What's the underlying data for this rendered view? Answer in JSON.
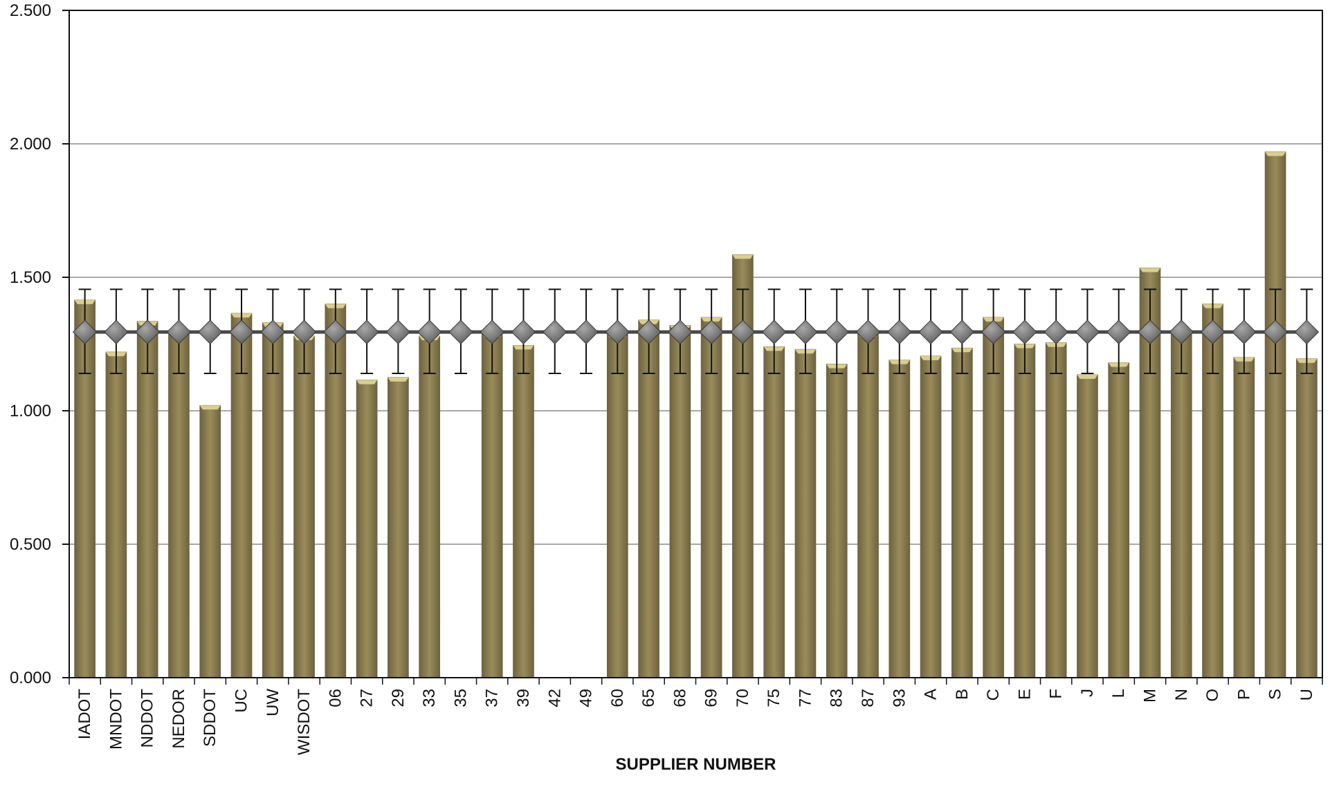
{
  "chart_data": {
    "type": "bar",
    "xlabel": "SUPPLIER NUMBER",
    "ylabel": "",
    "ylim": [
      0,
      2.5
    ],
    "yticks": [
      "0.000",
      "0.500",
      "1.000",
      "1.500",
      "2.000",
      "2.500"
    ],
    "grid": true,
    "legend": "none",
    "categories": [
      "IADOT",
      "MNDOT",
      "NDDOT",
      "NEDOR",
      "SDDOT",
      "UC",
      "UW",
      "WISDOT",
      "06",
      "27",
      "29",
      "33",
      "35",
      "37",
      "39",
      "42",
      "49",
      "60",
      "65",
      "68",
      "69",
      "70",
      "75",
      "77",
      "83",
      "87",
      "93",
      "A",
      "B",
      "C",
      "E",
      "F",
      "J",
      "L",
      "M",
      "N",
      "O",
      "P",
      "S",
      "U"
    ],
    "series": [
      {
        "type": "bar",
        "values": [
          1.415,
          1.22,
          1.335,
          1.3,
          1.02,
          1.365,
          1.33,
          1.28,
          1.4,
          1.115,
          1.125,
          1.28,
          null,
          1.29,
          1.245,
          null,
          null,
          1.29,
          1.34,
          1.32,
          1.35,
          1.585,
          1.24,
          1.23,
          1.175,
          1.29,
          1.19,
          1.205,
          1.235,
          1.35,
          1.25,
          1.255,
          1.135,
          1.18,
          1.535,
          1.3,
          1.4,
          1.2,
          1.97,
          1.195
        ]
      },
      {
        "type": "line",
        "value": 1.295,
        "error_upper": 1.455,
        "error_lower": 1.14
      }
    ],
    "colors": {
      "bar": "#9a8c59",
      "bar_highlight": "#d9cf8f",
      "bar_shadow": "#6e6340",
      "marker": "#5b5b5b",
      "marker_highlight": "#a8a8a8",
      "line": "#4a4a4a",
      "grid": "#8c8c8c"
    }
  }
}
